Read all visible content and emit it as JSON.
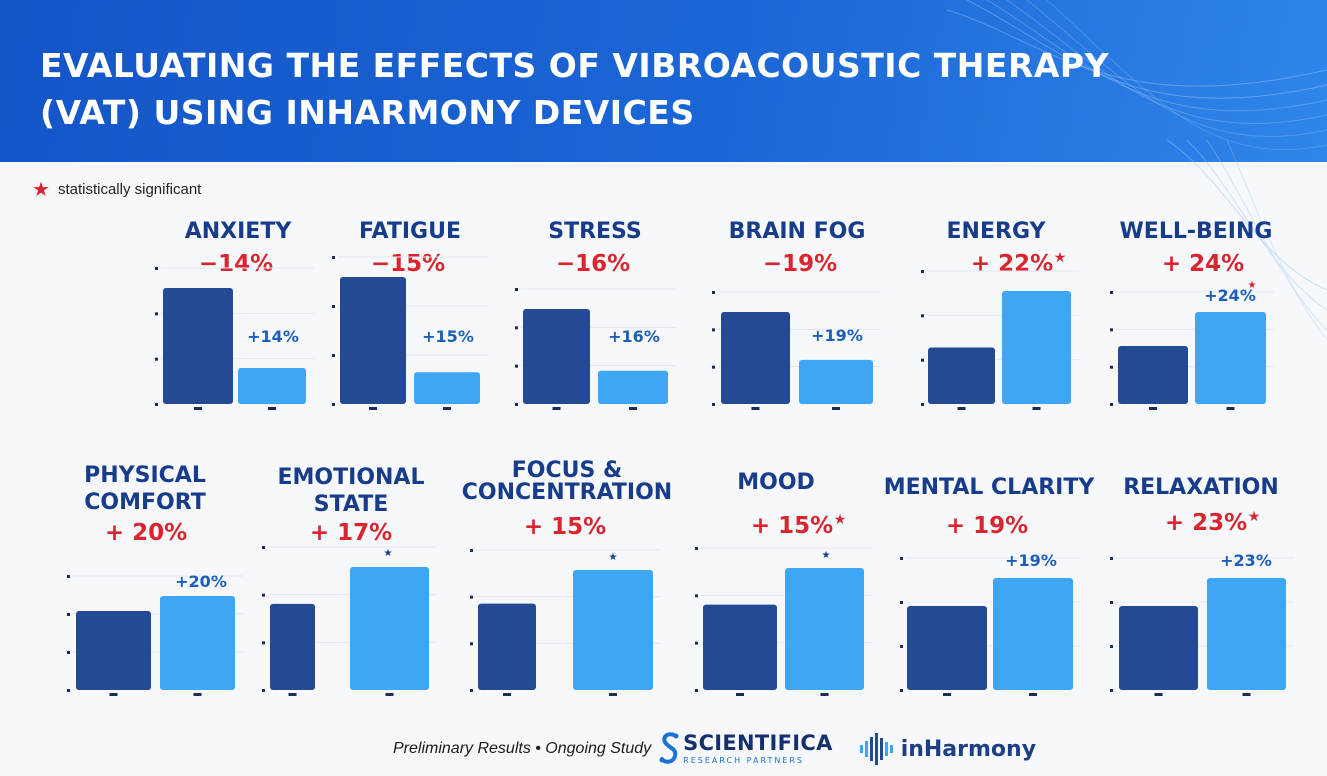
{
  "title_line1": "EVALUATING THE EFFECTS OF VIBROACOUSTIC THERAPY",
  "title_line2": "(VAT) USING INHARMONY DEVICES",
  "legend": {
    "icon": "star-icon",
    "text": "statistically significant"
  },
  "colors": {
    "banner": "#1b66d6",
    "metric_title": "#173c8a",
    "change_label": "#d9262e",
    "bar_before": "#234a93",
    "bar_after": "#3fa6f5",
    "bar_label": "#1d5fb8",
    "star": "#d9262e"
  },
  "chart_data": [
    {
      "type": "bar",
      "title": [
        "ANXIETY"
      ],
      "change": "−14%",
      "bar_label": "+14%",
      "significant": false,
      "bar_star": false,
      "values": [
        100,
        31
      ]
    },
    {
      "type": "bar",
      "title": [
        "FATIGUE"
      ],
      "change": "−15%",
      "bar_label": "+15%",
      "significant": false,
      "bar_star": false,
      "values": [
        100,
        25
      ]
    },
    {
      "type": "bar",
      "title": [
        "STRESS"
      ],
      "change": "−16%",
      "bar_label": "+16%",
      "significant": false,
      "bar_star": false,
      "values": [
        100,
        35
      ]
    },
    {
      "type": "bar",
      "title": [
        "BRAIN FOG"
      ],
      "change": "−19%",
      "bar_label": "+19%",
      "significant": false,
      "bar_star": false,
      "values": [
        100,
        48
      ]
    },
    {
      "type": "bar",
      "title": [
        "ENERGY"
      ],
      "change": "+ 22%",
      "bar_label": "",
      "significant": true,
      "bar_star": false,
      "values": [
        50,
        100
      ]
    },
    {
      "type": "bar",
      "title": [
        "WELL-BEING"
      ],
      "change": "+ 24%",
      "bar_label": "+24%",
      "significant": false,
      "bar_star": true,
      "values": [
        63,
        100
      ]
    },
    {
      "type": "bar",
      "title": [
        "PHYSICAL",
        "COMFORT"
      ],
      "change": "+ 20%",
      "bar_label": "+20%",
      "significant": false,
      "bar_star": false,
      "values": [
        84,
        100
      ]
    },
    {
      "type": "bar",
      "title": [
        "EMOTIONAL",
        "STATE"
      ],
      "change": "+ 17%",
      "bar_label": "",
      "significant": false,
      "bar_star": true,
      "values": [
        70,
        100
      ]
    },
    {
      "type": "bar",
      "title": [
        "FOCUS &",
        "CONCENTRATION"
      ],
      "change": "+ 15%",
      "bar_label": "",
      "significant": false,
      "bar_star": true,
      "values": [
        72,
        100
      ]
    },
    {
      "type": "bar",
      "title": [
        "MOOD"
      ],
      "change": "+ 15%",
      "bar_label": "",
      "significant": true,
      "bar_star": true,
      "values": [
        70,
        100
      ]
    },
    {
      "type": "bar",
      "title": [
        "MENTAL CLARITY"
      ],
      "change": "+ 19%",
      "bar_label": "+19%",
      "significant": false,
      "bar_star": false,
      "values": [
        75,
        100
      ]
    },
    {
      "type": "bar",
      "title": [
        "RELAXATION"
      ],
      "change": "+ 23%",
      "bar_label": "+23%",
      "significant": true,
      "bar_star": false,
      "values": [
        75,
        100
      ]
    }
  ],
  "footer": {
    "note": "Preliminary Results • Ongoing Study",
    "scientifica_name": "SCIENTIFICA",
    "scientifica_sub": "RESEARCH PARTNERS",
    "inharmony_name": "inHarmony"
  }
}
